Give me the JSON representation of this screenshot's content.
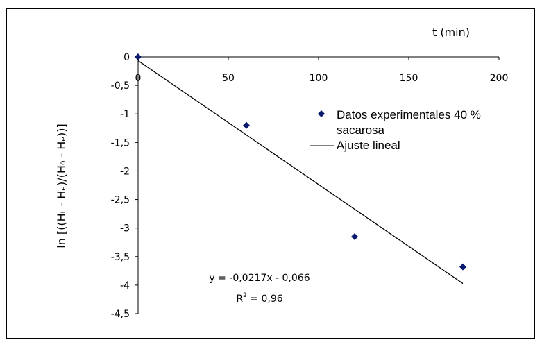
{
  "chart_data": {
    "type": "scatter",
    "xlabel": "t (min)",
    "ylabel": "ln [((Hₜ - Hₑ)/(H₀ - Hₑ))]",
    "xlim": [
      0,
      200
    ],
    "ylim": [
      -4.5,
      0
    ],
    "xticks": [
      "0",
      "50",
      "100",
      "150",
      "200"
    ],
    "yticks": [
      "0",
      "-0,5",
      "-1",
      "-1,5",
      "-2",
      "-2,5",
      "-3",
      "-3,5",
      "-4",
      "-4,5"
    ],
    "grid": false,
    "legend_position": "right",
    "series": [
      {
        "name": "Datos experimentales 40 % sacarosa",
        "name_line1": "Datos experimentales 40 %",
        "name_line2": "sacarosa",
        "marker": "diamond",
        "color": "#0a1a6e",
        "points": [
          {
            "x": 0,
            "y": 0
          },
          {
            "x": 60,
            "y": -1.2
          },
          {
            "x": 120,
            "y": -3.15
          },
          {
            "x": 180,
            "y": -3.68
          }
        ]
      },
      {
        "name": "Ajuste lineal",
        "type": "line",
        "color": "#000000",
        "slope": -0.0217,
        "intercept": -0.066,
        "x_range": [
          0,
          180
        ]
      }
    ],
    "annotation": {
      "equation": "y = -0,0217x - 0,066",
      "r2_prefix": "R",
      "r2_sup": "2",
      "r2_suffix": " = 0,96"
    }
  }
}
